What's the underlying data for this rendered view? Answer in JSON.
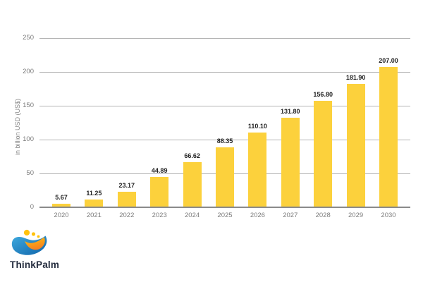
{
  "page": {
    "background": "#FFFFFF"
  },
  "chart_data": {
    "type": "bar",
    "title": "",
    "categories": [
      "2020",
      "2021",
      "2022",
      "2023",
      "2024",
      "2025",
      "2026",
      "2027",
      "2028",
      "2029",
      "2030"
    ],
    "values": [
      5.67,
      11.25,
      23.17,
      44.89,
      66.62,
      88.35,
      110.1,
      131.8,
      156.8,
      181.9,
      207.0
    ],
    "value_labels": [
      "5.67",
      "11.25",
      "23.17",
      "44.89",
      "66.62",
      "88.35",
      "110.10",
      "131.80",
      "156.80",
      "181.90",
      "207.00"
    ],
    "xlabel": "",
    "ylabel": "in billion USD (US$)",
    "ylim": [
      0,
      250
    ],
    "yticks": [
      0,
      50,
      100,
      150,
      200,
      250
    ],
    "grid": true,
    "legend": "none",
    "bar_color": "#FCD13C",
    "gridline_color": "#B3B3B3",
    "baseline_color": "#8A8A8A"
  },
  "logo": {
    "text": "ThinkPalm",
    "colors": {
      "wave_blue_light": "#3FAADE",
      "wave_blue_dark": "#0F63A9",
      "crescent_yellow": "#FFC20E",
      "crescent_orange": "#F58220",
      "dot_yellow": "#FFC20E",
      "text": "#232B3D"
    }
  }
}
